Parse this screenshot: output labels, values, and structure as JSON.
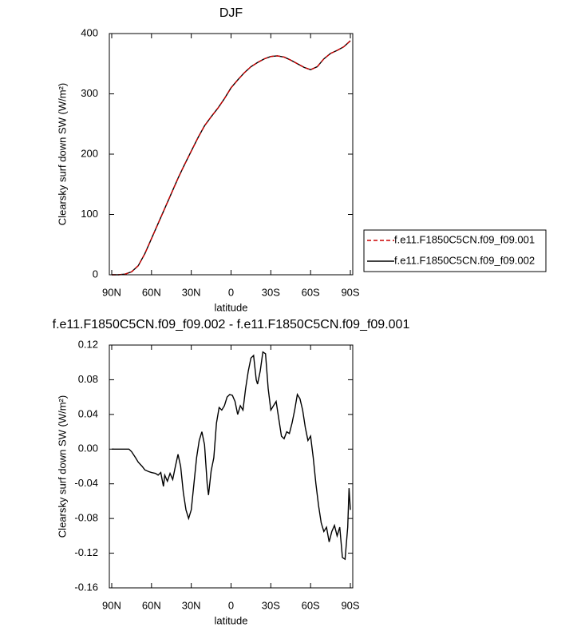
{
  "chart_data": [
    {
      "type": "line",
      "title": "DJF",
      "xlabel": "latitude",
      "ylabel": "Clearsky surf down SW (W/m²)",
      "x": [
        90,
        85,
        80,
        75,
        70,
        65,
        60,
        55,
        50,
        45,
        40,
        35,
        30,
        25,
        20,
        15,
        10,
        5,
        0,
        -5,
        -10,
        -15,
        -20,
        -25,
        -30,
        -35,
        -40,
        -45,
        -50,
        -55,
        -60,
        -65,
        -70,
        -75,
        -80,
        -85,
        -90
      ],
      "series": [
        {
          "name": "f.e11.F1850C5CN.f09_f09.002",
          "color": "#000000",
          "dash": false,
          "values": [
            0,
            0,
            1,
            5,
            15,
            35,
            60,
            85,
            110,
            135,
            160,
            183,
            205,
            227,
            247,
            262,
            276,
            292,
            310,
            323,
            335,
            345,
            352,
            358,
            362,
            363,
            361,
            356,
            350,
            344,
            340,
            345,
            358,
            367,
            372,
            378,
            388
          ]
        },
        {
          "name": "f.e11.F1850C5CN.f09_f09.001",
          "color": "#cc0000",
          "dash": true,
          "values": [
            0,
            0,
            1,
            5,
            15,
            35,
            60,
            85,
            110,
            135,
            160,
            183,
            205,
            227,
            247,
            262,
            276,
            292,
            310,
            323,
            335,
            345,
            352,
            358,
            362,
            363,
            361,
            356,
            350,
            344,
            340,
            345,
            358,
            367,
            372,
            378,
            388
          ]
        }
      ],
      "legend": "outside-right",
      "xlim": [
        91.8,
        -91.8
      ],
      "xticks": [
        {
          "value": 90,
          "label": "90N"
        },
        {
          "value": 60,
          "label": "60N"
        },
        {
          "value": 30,
          "label": "30N"
        },
        0,
        {
          "value": -30,
          "label": "30S"
        },
        {
          "value": -60,
          "label": "60S"
        },
        {
          "value": -90,
          "label": "90S"
        }
      ],
      "ylim": [
        0,
        400
      ],
      "yticks": [
        0,
        100,
        200,
        300,
        400
      ]
    },
    {
      "type": "line",
      "title": "f.e11.F1850C5CN.f09_f09.002 - f.e11.F1850C5CN.f09_f09.001",
      "xlabel": "latitude",
      "ylabel": "Clearsky surf down SW (W/m²)",
      "x": [
        90,
        80,
        77,
        75,
        72,
        70,
        67,
        65,
        62,
        60,
        57,
        55,
        53,
        51,
        50,
        48,
        46,
        44,
        42,
        40,
        38,
        36,
        34,
        32,
        30,
        28,
        26,
        24,
        22,
        20,
        18,
        17,
        15,
        13,
        11,
        9,
        7,
        5,
        3,
        1,
        -1,
        -3,
        -5,
        -7,
        -9,
        -11,
        -13,
        -15,
        -17,
        -19,
        -20,
        -22,
        -24,
        -26,
        -28,
        -30,
        -32,
        -34,
        -36,
        -38,
        -40,
        -42,
        -44,
        -46,
        -48,
        -50,
        -52,
        -54,
        -56,
        -58,
        -60,
        -62,
        -64,
        -66,
        -68,
        -70,
        -72,
        -74,
        -76,
        -78,
        -80,
        -82,
        -84,
        -86,
        -88,
        -89,
        -90
      ],
      "series": [
        {
          "color": "#000000",
          "dash": false,
          "values": [
            0,
            0,
            0,
            -0.003,
            -0.01,
            -0.015,
            -0.02,
            -0.024,
            -0.026,
            -0.027,
            -0.028,
            -0.03,
            -0.027,
            -0.043,
            -0.03,
            -0.037,
            -0.028,
            -0.035,
            -0.02,
            -0.006,
            -0.02,
            -0.05,
            -0.07,
            -0.08,
            -0.07,
            -0.04,
            -0.01,
            0.01,
            0.02,
            0.005,
            -0.04,
            -0.053,
            -0.025,
            -0.01,
            0.03,
            0.048,
            0.045,
            0.05,
            0.06,
            0.063,
            0.062,
            0.055,
            0.04,
            0.05,
            0.045,
            0.07,
            0.09,
            0.105,
            0.108,
            0.08,
            0.075,
            0.09,
            0.112,
            0.11,
            0.07,
            0.045,
            0.05,
            0.055,
            0.035,
            0.015,
            0.012,
            0.02,
            0.018,
            0.03,
            0.045,
            0.063,
            0.058,
            0.045,
            0.025,
            0.01,
            0.015,
            -0.01,
            -0.04,
            -0.065,
            -0.085,
            -0.095,
            -0.09,
            -0.107,
            -0.095,
            -0.088,
            -0.1,
            -0.09,
            -0.125,
            -0.127,
            -0.09,
            -0.045,
            -0.07
          ]
        }
      ],
      "xlim": [
        91.8,
        -91.8
      ],
      "xticks": [
        {
          "value": 90,
          "label": "90N"
        },
        {
          "value": 60,
          "label": "60N"
        },
        {
          "value": 30,
          "label": "30N"
        },
        0,
        {
          "value": -30,
          "label": "30S"
        },
        {
          "value": -60,
          "label": "60S"
        },
        {
          "value": -90,
          "label": "90S"
        }
      ],
      "ylim": [
        -0.16,
        0.12
      ],
      "yticks": [
        {
          "value": -0.16,
          "label": "-0.16"
        },
        {
          "value": -0.12,
          "label": "-0.12"
        },
        {
          "value": -0.08,
          "label": "-0.08"
        },
        {
          "value": -0.04,
          "label": "-0.04"
        },
        {
          "value": 0,
          "label": "0.00"
        },
        {
          "value": 0.04,
          "label": "0.04"
        },
        {
          "value": 0.08,
          "label": "0.08"
        },
        {
          "value": 0.12,
          "label": "0.12"
        }
      ]
    }
  ]
}
